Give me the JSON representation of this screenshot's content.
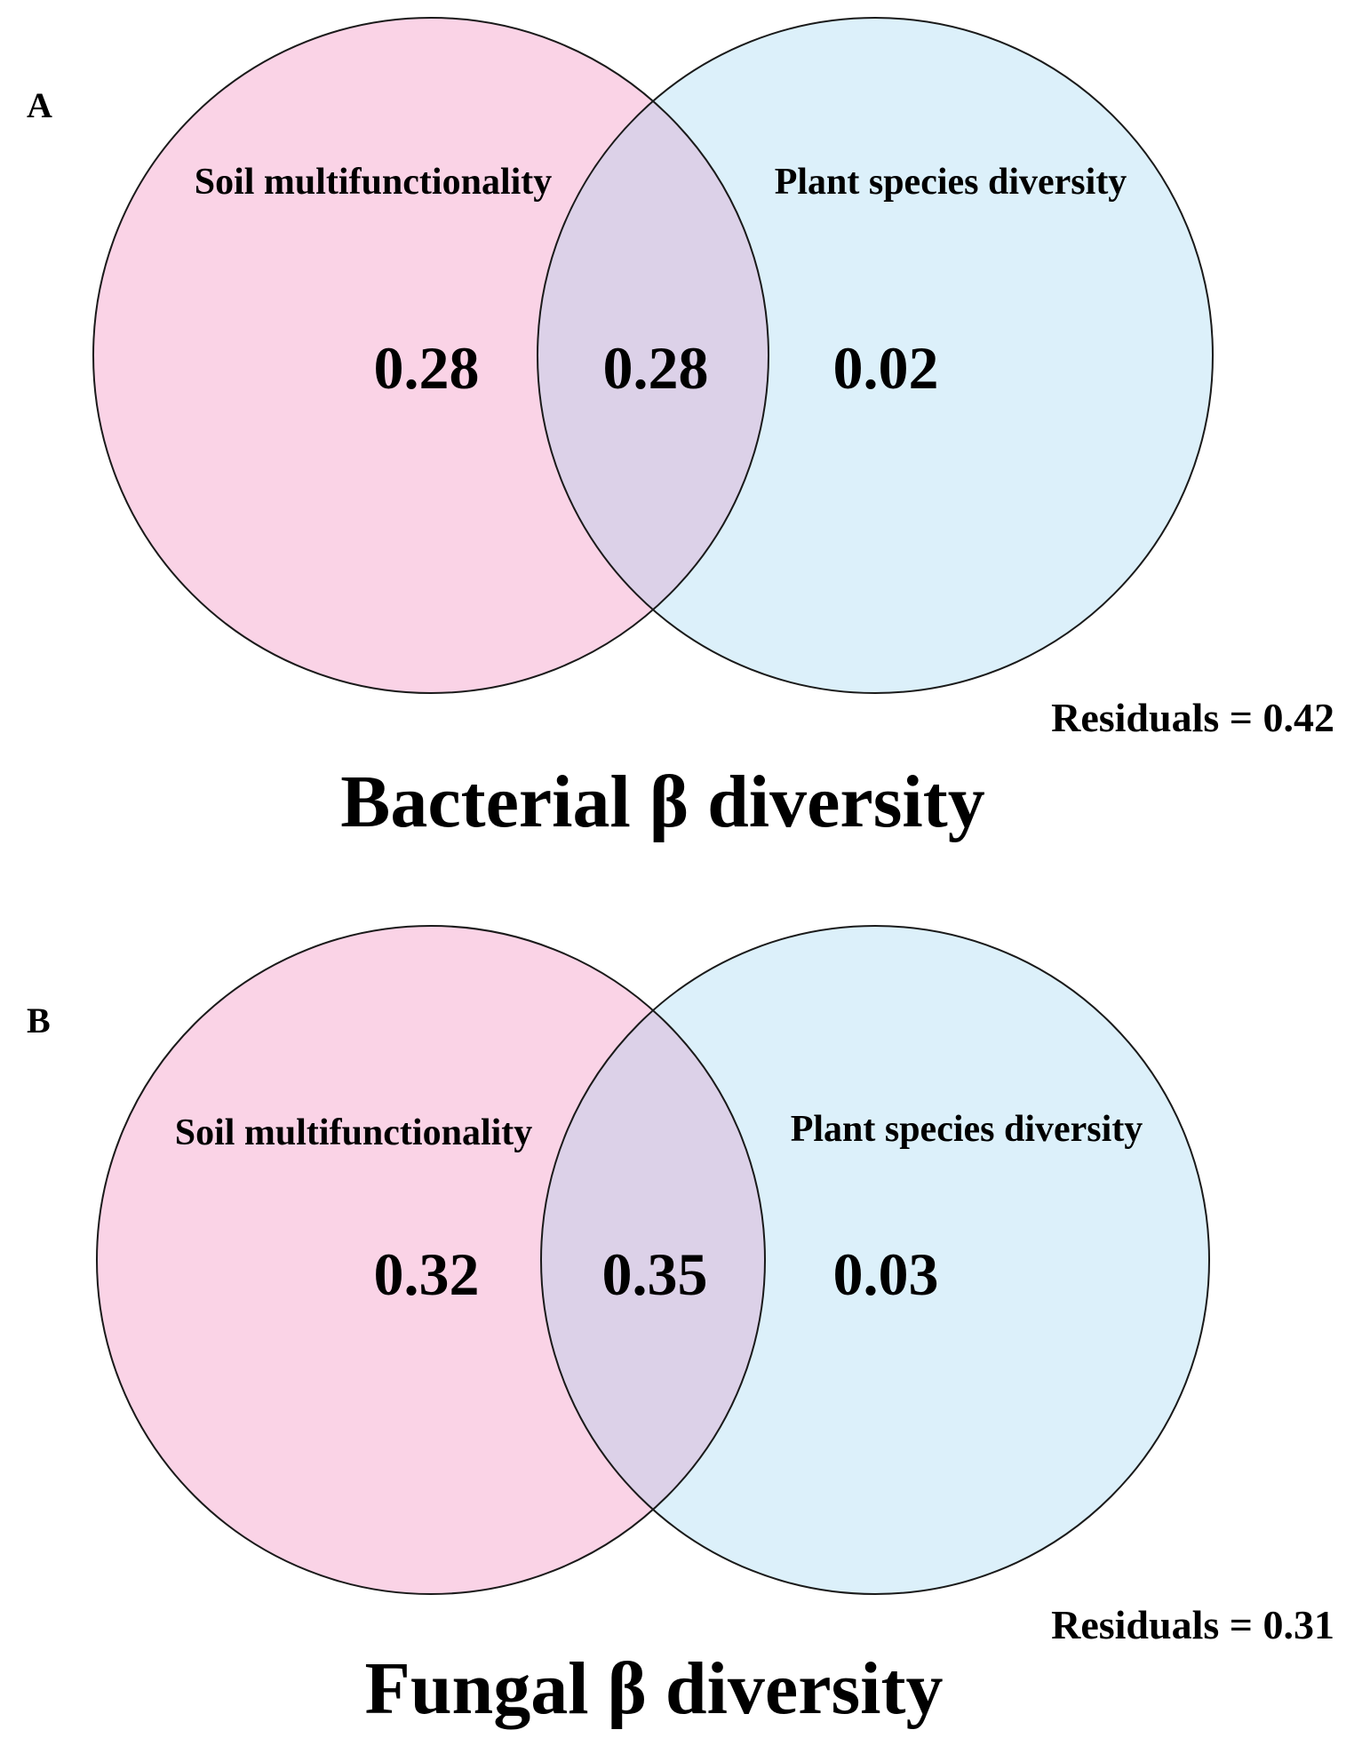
{
  "colors": {
    "left_set_fill": "#fad3e6",
    "right_set_fill": "#dcf0fa",
    "overlap_fill": "#dcd1e8",
    "outline": "#1a1a1a",
    "text": "#000000"
  },
  "panels": [
    {
      "letter": "A",
      "title": "Bacterial β diversity",
      "left_set": {
        "label": "Soil multifunctionality",
        "value": "0.28"
      },
      "overlap": {
        "value": "0.28"
      },
      "right_set": {
        "label": "Plant species diversity",
        "value": "0.02"
      },
      "residuals": "Residuals = 0.42"
    },
    {
      "letter": "B",
      "title": "Fungal β diversity",
      "left_set": {
        "label": "Soil multifunctionality",
        "value": "0.32"
      },
      "overlap": {
        "value": "0.35"
      },
      "right_set": {
        "label": "Plant species diversity",
        "value": "0.03"
      },
      "residuals": "Residuals = 0.31"
    }
  ]
}
